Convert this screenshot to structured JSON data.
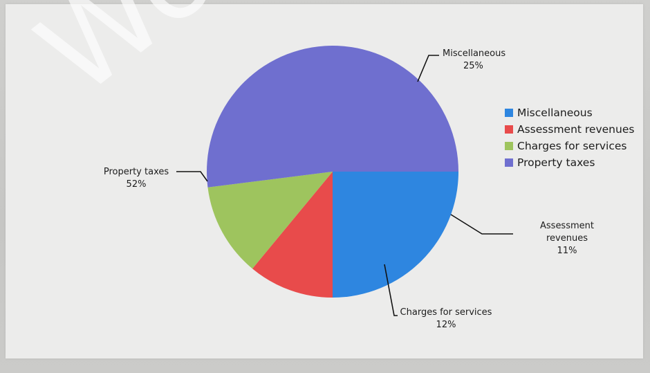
{
  "chart_data": {
    "type": "pie",
    "title": "",
    "start_angle_deg": 0,
    "direction": "clockwise",
    "legend_position": "right",
    "slices": [
      {
        "label": "Miscellaneous",
        "value": 25,
        "pct_label": "25%",
        "color": "#2e86e0"
      },
      {
        "label": "Assessment revenues",
        "value": 11,
        "pct_label": "11%",
        "color": "#e84b4b"
      },
      {
        "label": "Charges for services",
        "value": 12,
        "pct_label": "12%",
        "color": "#9ec45e"
      },
      {
        "label": "Property taxes",
        "value": 52,
        "pct_label": "52%",
        "color": "#6f6fcf"
      }
    ],
    "legend": [
      "Miscellaneous",
      "Assessment revenues",
      "Charges for services",
      "Property taxes"
    ]
  },
  "watermark": "Wo"
}
